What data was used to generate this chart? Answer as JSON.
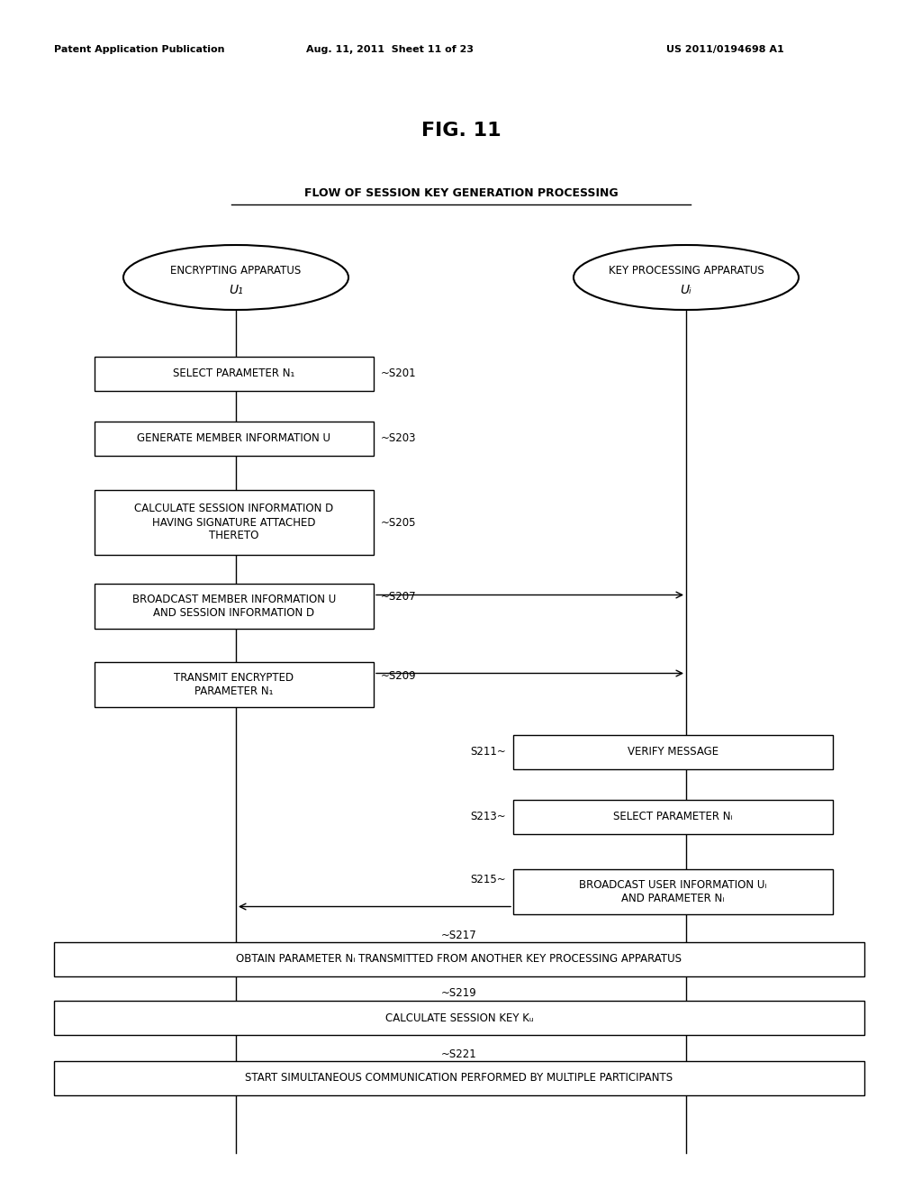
{
  "fig_title": "FIG. 11",
  "subtitle": "FLOW OF SESSION KEY GENERATION PROCESSING",
  "header_left": "Patent Application Publication",
  "header_mid": "Aug. 11, 2011  Sheet 11 of 23",
  "header_right": "US 2011/0194698 A1",
  "left_oval_line1": "ENCRYPTING APPARATUS",
  "left_oval_line2": "U₁",
  "right_oval_line1": "KEY PROCESSING APPARATUS",
  "right_oval_line2": "Uᵢ",
  "bg_color": "#ffffff",
  "box_edge_color": "#000000",
  "text_color": "#000000"
}
